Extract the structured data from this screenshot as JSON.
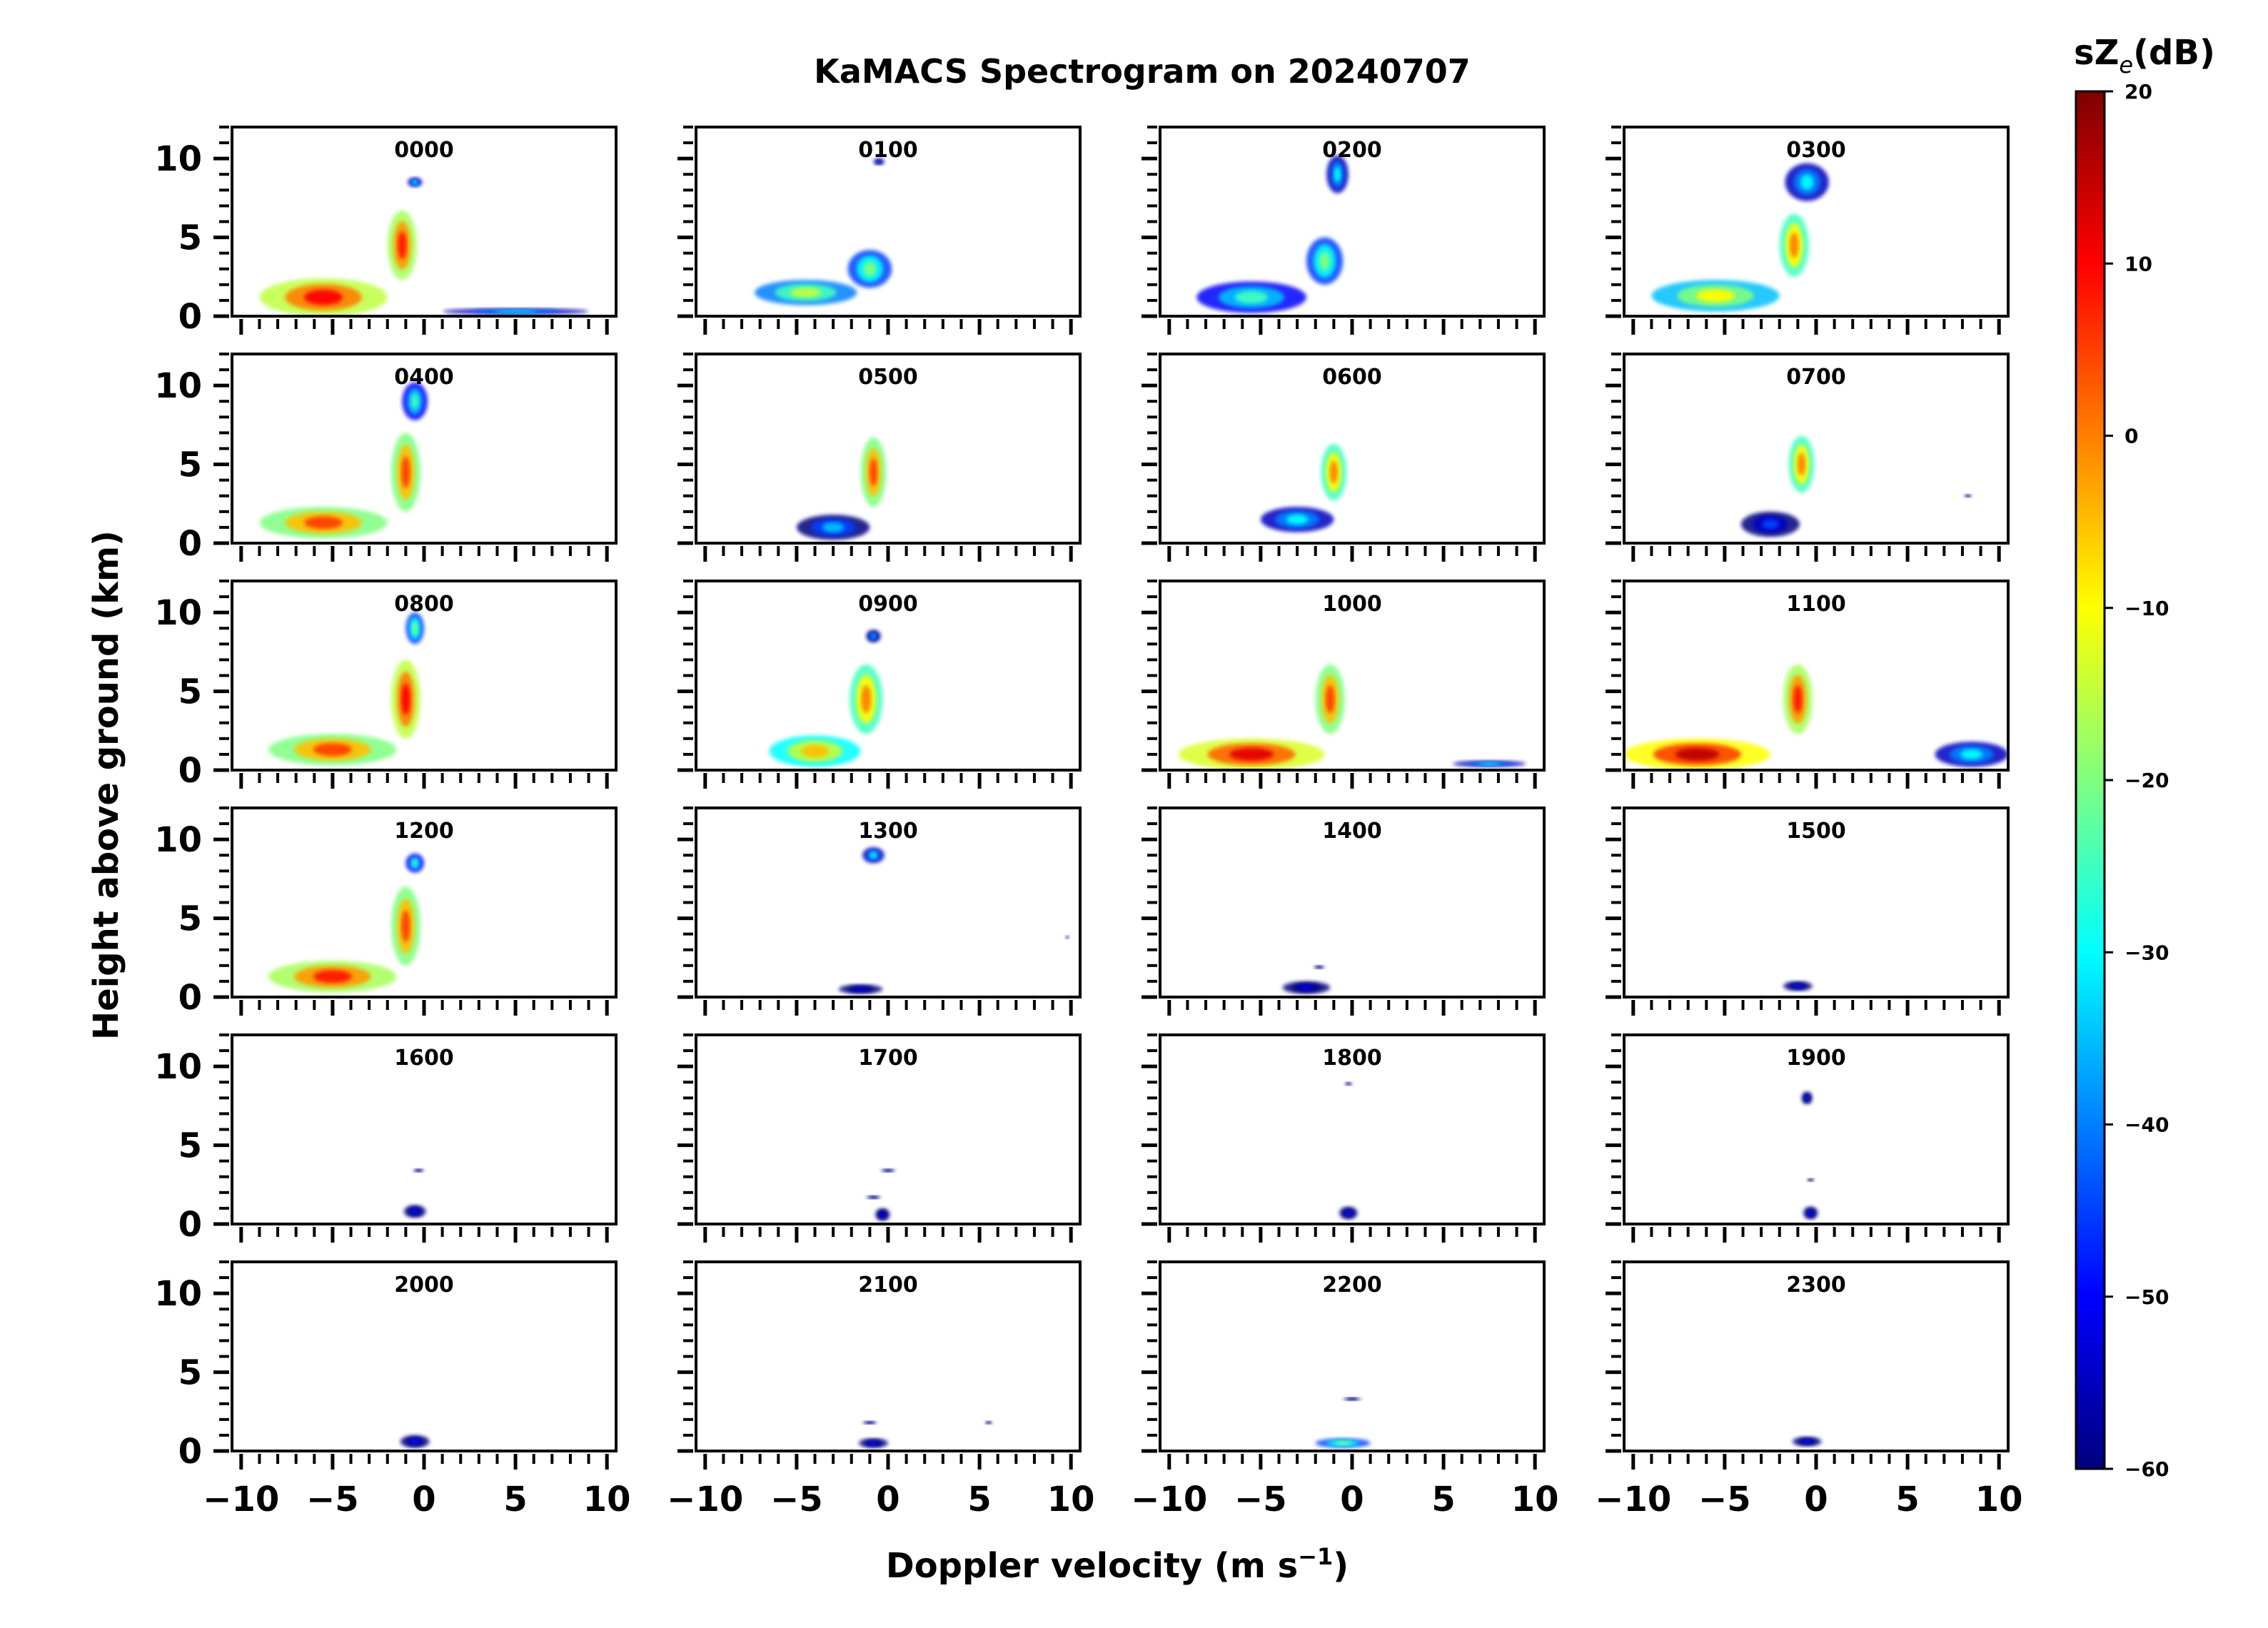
{
  "chart_data": {
    "type": "heatmap",
    "title": "KaMACS Spectrogram on 20240707",
    "xlabel": "Doppler velocity (m s",
    "xlabel_sup": "−1",
    "xlabel_end": ")",
    "ylabel": "Height above ground (km)",
    "xlim": [
      -10.5,
      10.5
    ],
    "ylim": [
      0,
      12
    ],
    "xticks": [
      -10,
      -5,
      0,
      5,
      10
    ],
    "xtick_labels": [
      "−10",
      "−5",
      "0",
      "5",
      "10"
    ],
    "yticks": [
      0,
      5,
      10
    ],
    "ytick_labels": [
      "0",
      "5",
      "10"
    ],
    "colorbar": {
      "label_main": "sZ",
      "label_sub": "e",
      "label_unit": "(dB)",
      "range": [
        -60,
        20
      ],
      "ticks": [
        20,
        10,
        0,
        -10,
        -20,
        -30,
        -40,
        -50,
        -60
      ],
      "tick_labels": [
        "20",
        "10",
        "0",
        "−10",
        "−20",
        "−30",
        "−40",
        "−50",
        "−60"
      ],
      "colormap": [
        "#00007f",
        "#0000ff",
        "#007fff",
        "#00ffff",
        "#7fff7f",
        "#ffff00",
        "#ff7f00",
        "#ff0000",
        "#7f0000"
      ]
    },
    "panels": [
      {
        "label": "0000",
        "blobs": [
          {
            "v": -5.5,
            "h": 1.2,
            "sv": 3.5,
            "sh": 1.2,
            "z": 10
          },
          {
            "v": -1.2,
            "h": 4.5,
            "sv": 0.8,
            "sh": 2.2,
            "z": 8
          },
          {
            "v": -0.5,
            "h": 8.5,
            "sv": 0.4,
            "sh": 0.3,
            "z": -30
          },
          {
            "v": 5,
            "h": 0.3,
            "sv": 4,
            "sh": 0.2,
            "z": -30
          }
        ]
      },
      {
        "label": "0100",
        "blobs": [
          {
            "v": -4.5,
            "h": 1.5,
            "sv": 2.8,
            "sh": 0.8,
            "z": -15
          },
          {
            "v": -1.0,
            "h": 3.0,
            "sv": 1.2,
            "sh": 1.2,
            "z": -20
          },
          {
            "v": -0.5,
            "h": 9.8,
            "sv": 0.3,
            "sh": 0.2,
            "z": -40
          }
        ]
      },
      {
        "label": "0200",
        "blobs": [
          {
            "v": -5.5,
            "h": 1.2,
            "sv": 3,
            "sh": 1.0,
            "z": -25
          },
          {
            "v": -1.5,
            "h": 3.5,
            "sv": 1.0,
            "sh": 1.5,
            "z": -20
          },
          {
            "v": -0.8,
            "h": 9.0,
            "sv": 0.6,
            "sh": 1.2,
            "z": -30
          }
        ]
      },
      {
        "label": "0300",
        "blobs": [
          {
            "v": -5.5,
            "h": 1.3,
            "sv": 3.5,
            "sh": 1.0,
            "z": -10
          },
          {
            "v": -1.2,
            "h": 4.5,
            "sv": 0.8,
            "sh": 2.0,
            "z": 0
          },
          {
            "v": -0.5,
            "h": 8.5,
            "sv": 1.2,
            "sh": 1.2,
            "z": -30
          }
        ]
      },
      {
        "label": "0400",
        "blobs": [
          {
            "v": -5.5,
            "h": 1.3,
            "sv": 3.5,
            "sh": 1.0,
            "z": 5
          },
          {
            "v": -1.0,
            "h": 4.5,
            "sv": 0.8,
            "sh": 2.5,
            "z": 5
          },
          {
            "v": -0.5,
            "h": 9.0,
            "sv": 0.7,
            "sh": 1.2,
            "z": -25
          }
        ]
      },
      {
        "label": "0500",
        "blobs": [
          {
            "v": -3.0,
            "h": 1.0,
            "sv": 2.0,
            "sh": 0.8,
            "z": -35
          },
          {
            "v": -0.8,
            "h": 4.5,
            "sv": 0.7,
            "sh": 2.2,
            "z": 5
          }
        ]
      },
      {
        "label": "0600",
        "blobs": [
          {
            "v": -3.0,
            "h": 1.5,
            "sv": 2.0,
            "sh": 0.8,
            "z": -30
          },
          {
            "v": -1.0,
            "h": 4.5,
            "sv": 0.7,
            "sh": 1.8,
            "z": 0
          }
        ]
      },
      {
        "label": "0700",
        "blobs": [
          {
            "v": -2.5,
            "h": 1.2,
            "sv": 1.6,
            "sh": 0.8,
            "z": -45
          },
          {
            "v": -0.8,
            "h": 5.0,
            "sv": 0.7,
            "sh": 1.8,
            "z": 0
          },
          {
            "v": 8.3,
            "h": 3.0,
            "sv": 0.2,
            "sh": 0.1,
            "z": -45
          }
        ]
      },
      {
        "label": "0800",
        "blobs": [
          {
            "v": -5.0,
            "h": 1.3,
            "sv": 3.5,
            "sh": 1.0,
            "z": 5
          },
          {
            "v": -1.0,
            "h": 4.5,
            "sv": 0.8,
            "sh": 2.5,
            "z": 10
          },
          {
            "v": -0.5,
            "h": 9.0,
            "sv": 0.5,
            "sh": 1.0,
            "z": -20
          }
        ]
      },
      {
        "label": "0900",
        "blobs": [
          {
            "v": -4.0,
            "h": 1.2,
            "sv": 2.5,
            "sh": 1.0,
            "z": -5
          },
          {
            "v": -1.2,
            "h": 4.5,
            "sv": 0.9,
            "sh": 2.2,
            "z": 0
          },
          {
            "v": -0.8,
            "h": 8.5,
            "sv": 0.4,
            "sh": 0.4,
            "z": -35
          }
        ]
      },
      {
        "label": "1000",
        "blobs": [
          {
            "v": -5.5,
            "h": 1.0,
            "sv": 4.0,
            "sh": 1.0,
            "z": 12
          },
          {
            "v": -1.2,
            "h": 4.5,
            "sv": 0.8,
            "sh": 2.2,
            "z": 5
          },
          {
            "v": 7.5,
            "h": 0.4,
            "sv": 2.0,
            "sh": 0.2,
            "z": -30
          }
        ]
      },
      {
        "label": "1100",
        "blobs": [
          {
            "v": -6.5,
            "h": 1.0,
            "sv": 4.0,
            "sh": 1.0,
            "z": 15
          },
          {
            "v": -1.0,
            "h": 4.5,
            "sv": 0.8,
            "sh": 2.2,
            "z": 8
          },
          {
            "v": 8.5,
            "h": 1.0,
            "sv": 2.0,
            "sh": 0.8,
            "z": -30
          }
        ]
      },
      {
        "label": "1200",
        "blobs": [
          {
            "v": -5.0,
            "h": 1.3,
            "sv": 3.5,
            "sh": 1.0,
            "z": 8
          },
          {
            "v": -1.0,
            "h": 4.5,
            "sv": 0.8,
            "sh": 2.5,
            "z": 5
          },
          {
            "v": -0.5,
            "h": 8.5,
            "sv": 0.5,
            "sh": 0.6,
            "z": -25
          }
        ]
      },
      {
        "label": "1300",
        "blobs": [
          {
            "v": -0.8,
            "h": 9.0,
            "sv": 0.6,
            "sh": 0.5,
            "z": -30
          },
          {
            "v": -1.5,
            "h": 0.5,
            "sv": 1.2,
            "sh": 0.3,
            "z": -50
          },
          {
            "v": 9.8,
            "h": 3.8,
            "sv": 0.1,
            "sh": 0.1,
            "z": -40
          }
        ]
      },
      {
        "label": "1400",
        "blobs": [
          {
            "v": -2.5,
            "h": 0.6,
            "sv": 1.3,
            "sh": 0.4,
            "z": -50
          },
          {
            "v": -1.8,
            "h": 1.9,
            "sv": 0.3,
            "sh": 0.1,
            "z": -50
          }
        ]
      },
      {
        "label": "1500",
        "blobs": [
          {
            "v": -1.0,
            "h": 0.7,
            "sv": 0.8,
            "sh": 0.3,
            "z": -48
          }
        ]
      },
      {
        "label": "1600",
        "blobs": [
          {
            "v": -0.5,
            "h": 0.8,
            "sv": 0.6,
            "sh": 0.4,
            "z": -48
          },
          {
            "v": -0.3,
            "h": 3.4,
            "sv": 0.3,
            "sh": 0.1,
            "z": -50
          }
        ]
      },
      {
        "label": "1700",
        "blobs": [
          {
            "v": -0.3,
            "h": 0.6,
            "sv": 0.4,
            "sh": 0.4,
            "z": -50
          },
          {
            "v": -0.8,
            "h": 1.7,
            "sv": 0.4,
            "sh": 0.1,
            "z": -50
          },
          {
            "v": 0,
            "h": 3.4,
            "sv": 0.4,
            "sh": 0.1,
            "z": -50
          }
        ]
      },
      {
        "label": "1800",
        "blobs": [
          {
            "v": -0.2,
            "h": 0.7,
            "sv": 0.5,
            "sh": 0.4,
            "z": -48
          },
          {
            "v": -0.2,
            "h": 8.9,
            "sv": 0.2,
            "sh": 0.1,
            "z": -45
          }
        ]
      },
      {
        "label": "1900",
        "blobs": [
          {
            "v": -0.3,
            "h": 0.7,
            "sv": 0.4,
            "sh": 0.4,
            "z": -48
          },
          {
            "v": -0.5,
            "h": 8.0,
            "sv": 0.3,
            "sh": 0.4,
            "z": -48
          },
          {
            "v": -0.3,
            "h": 2.8,
            "sv": 0.2,
            "sh": 0.1,
            "z": -50
          }
        ]
      },
      {
        "label": "2000",
        "blobs": [
          {
            "v": -0.5,
            "h": 0.6,
            "sv": 0.8,
            "sh": 0.4,
            "z": -48
          }
        ]
      },
      {
        "label": "2100",
        "blobs": [
          {
            "v": -0.8,
            "h": 0.5,
            "sv": 0.8,
            "sh": 0.3,
            "z": -48
          },
          {
            "v": -1.0,
            "h": 1.8,
            "sv": 0.4,
            "sh": 0.1,
            "z": -50
          },
          {
            "v": 5.5,
            "h": 1.8,
            "sv": 0.2,
            "sh": 0.1,
            "z": -50
          }
        ]
      },
      {
        "label": "2200",
        "blobs": [
          {
            "v": -0.5,
            "h": 0.5,
            "sv": 1.5,
            "sh": 0.3,
            "z": -20
          },
          {
            "v": 0,
            "h": 3.3,
            "sv": 0.5,
            "sh": 0.1,
            "z": -50
          }
        ]
      },
      {
        "label": "2300",
        "blobs": [
          {
            "v": -0.5,
            "h": 0.6,
            "sv": 0.8,
            "sh": 0.3,
            "z": -48
          }
        ]
      }
    ]
  }
}
